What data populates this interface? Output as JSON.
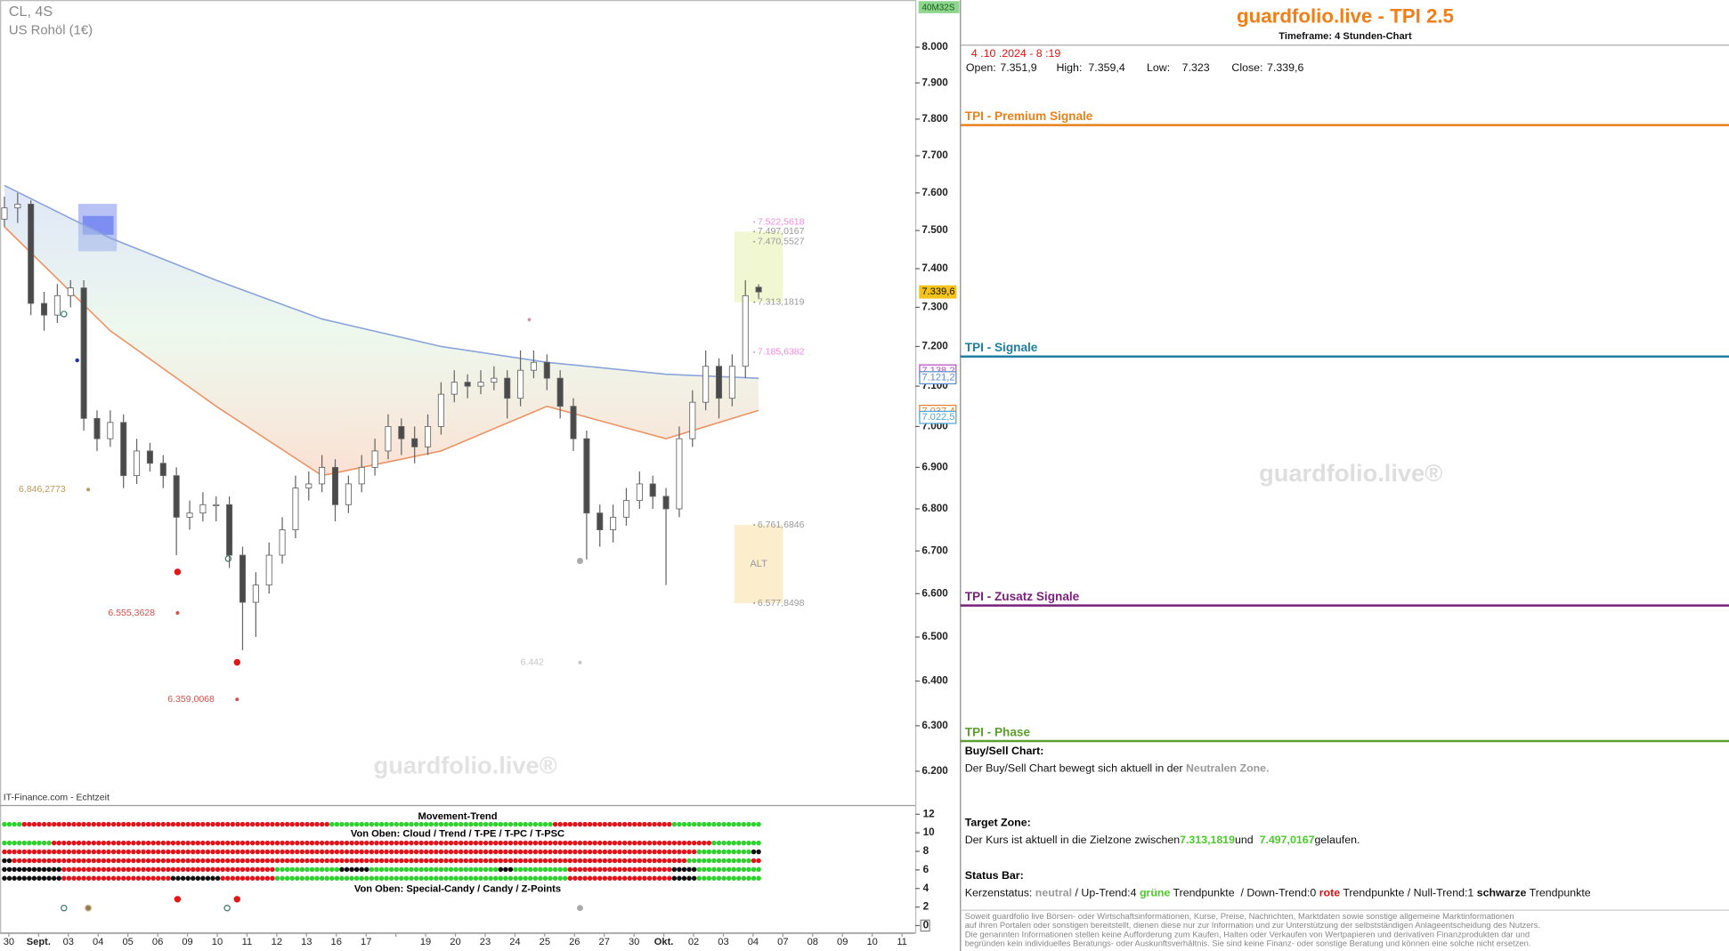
{
  "chart_data": {
    "type": "candlestick",
    "title": "CL, 4S",
    "subtitle": "US Rohöl (1€)",
    "source": "IT-Finance.com - Echtzeit",
    "watermark": "guardfolio.live®",
    "timer": "40M32S",
    "zone_label": "ALT",
    "log_scale": true,
    "grid": false,
    "up_color": "#ffffff",
    "down_color": "#4a4a4a",
    "wick_color": "#666666",
    "ylim": [
      6.128,
      8.134
    ],
    "yticks": [
      {
        "value": 6.2,
        "label": "6.200"
      },
      {
        "value": 6.3,
        "label": "6.300"
      },
      {
        "value": 6.4,
        "label": "6.400"
      },
      {
        "value": 6.5,
        "label": "6.500"
      },
      {
        "value": 6.6,
        "label": "6.600"
      },
      {
        "value": 6.7,
        "label": "6.700"
      },
      {
        "value": 6.8,
        "label": "6.800"
      },
      {
        "value": 6.9,
        "label": "6.900"
      },
      {
        "value": 7.0,
        "label": "7.000"
      },
      {
        "value": 7.1,
        "label": "7.100"
      },
      {
        "value": 7.2,
        "label": "7.200"
      },
      {
        "value": 7.3,
        "label": "7.300"
      },
      {
        "value": 7.4,
        "label": "7.400"
      },
      {
        "value": 7.5,
        "label": "7.500"
      },
      {
        "value": 7.6,
        "label": "7.600"
      },
      {
        "value": 7.7,
        "label": "7.700"
      },
      {
        "value": 7.8,
        "label": "7.800"
      },
      {
        "value": 7.9,
        "label": "7.900"
      },
      {
        "value": 8.0,
        "label": "8.000"
      }
    ],
    "categories": [
      "30",
      "Sept.",
      "03",
      "04",
      "05",
      "06",
      "09",
      "10",
      "11",
      "12",
      "13",
      "16",
      "17",
      null,
      "19",
      "20",
      "23",
      "24",
      "25",
      "26",
      "27",
      "30",
      "Okt.",
      "02",
      "03",
      "04",
      "07",
      "08",
      "09",
      "10",
      "11"
    ],
    "candles": [
      [
        7.53,
        7.59,
        7.51,
        7.56
      ],
      [
        7.56,
        7.6,
        7.52,
        7.57
      ],
      [
        7.57,
        7.58,
        7.28,
        7.31
      ],
      [
        7.31,
        7.34,
        7.24,
        7.28
      ],
      [
        7.28,
        7.36,
        7.26,
        7.33
      ],
      [
        7.33,
        7.37,
        7.3,
        7.35
      ],
      [
        7.35,
        7.37,
        6.99,
        7.02
      ],
      [
        7.02,
        7.04,
        6.94,
        6.97
      ],
      [
        6.97,
        7.04,
        6.95,
        7.01
      ],
      [
        7.01,
        7.03,
        6.85,
        6.88
      ],
      [
        6.88,
        6.97,
        6.86,
        6.94
      ],
      [
        6.94,
        6.96,
        6.89,
        6.91
      ],
      [
        6.91,
        6.93,
        6.85,
        6.88
      ],
      [
        6.88,
        6.9,
        6.69,
        6.78
      ],
      [
        6.78,
        6.82,
        6.75,
        6.79
      ],
      [
        6.79,
        6.84,
        6.77,
        6.81
      ],
      [
        6.81,
        6.83,
        6.77,
        6.81
      ],
      [
        6.81,
        6.83,
        6.66,
        6.69
      ],
      [
        6.69,
        6.71,
        6.47,
        6.58
      ],
      [
        6.58,
        6.65,
        6.5,
        6.62
      ],
      [
        6.62,
        6.72,
        6.6,
        6.69
      ],
      [
        6.69,
        6.78,
        6.67,
        6.75
      ],
      [
        6.75,
        6.88,
        6.73,
        6.85
      ],
      [
        6.85,
        6.89,
        6.82,
        6.86
      ],
      [
        6.86,
        6.93,
        6.84,
        6.9
      ],
      [
        6.9,
        6.92,
        6.77,
        6.81
      ],
      [
        6.81,
        6.88,
        6.79,
        6.86
      ],
      [
        6.86,
        6.93,
        6.84,
        6.9
      ],
      [
        6.9,
        6.97,
        6.88,
        6.94
      ],
      [
        6.94,
        7.03,
        6.92,
        7.0
      ],
      [
        7.0,
        7.02,
        6.93,
        6.97
      ],
      [
        6.97,
        7.0,
        6.91,
        6.95
      ],
      [
        6.95,
        7.03,
        6.93,
        7.0
      ],
      [
        7.0,
        7.11,
        6.98,
        7.08
      ],
      [
        7.08,
        7.14,
        7.06,
        7.11
      ],
      [
        7.11,
        7.13,
        7.07,
        7.1
      ],
      [
        7.1,
        7.14,
        7.08,
        7.11
      ],
      [
        7.11,
        7.15,
        7.09,
        7.12
      ],
      [
        7.12,
        7.14,
        7.02,
        7.07
      ],
      [
        7.07,
        7.19,
        7.05,
        7.14
      ],
      [
        7.14,
        7.19,
        7.12,
        7.16
      ],
      [
        7.16,
        7.18,
        7.09,
        7.12
      ],
      [
        7.12,
        7.14,
        7.02,
        7.05
      ],
      [
        7.05,
        7.07,
        6.94,
        6.97
      ],
      [
        6.97,
        6.99,
        6.68,
        6.79
      ],
      [
        6.79,
        6.81,
        6.71,
        6.75
      ],
      [
        6.75,
        6.81,
        6.72,
        6.78
      ],
      [
        6.78,
        6.85,
        6.76,
        6.82
      ],
      [
        6.82,
        6.89,
        6.8,
        6.86
      ],
      [
        6.86,
        6.88,
        6.8,
        6.83
      ],
      [
        6.83,
        6.85,
        6.62,
        6.8
      ],
      [
        6.8,
        7.0,
        6.78,
        6.97
      ],
      [
        6.97,
        7.09,
        6.95,
        7.06
      ],
      [
        7.06,
        7.19,
        7.04,
        7.15
      ],
      [
        7.15,
        7.17,
        7.02,
        7.07
      ],
      [
        7.07,
        7.18,
        7.05,
        7.15
      ],
      [
        7.15,
        7.37,
        7.12,
        7.33
      ],
      [
        7.3519,
        7.3594,
        7.323,
        7.3396
      ]
    ],
    "band_x": [
      0,
      8,
      16,
      24,
      33,
      41,
      50,
      57
    ],
    "bands": [
      {
        "color": "#8aa4dc",
        "values": [
          7.62,
          7.48,
          7.37,
          7.27,
          7.2,
          7.16,
          7.13,
          7.12
        ]
      },
      {
        "color": "#ec9466",
        "values": [
          7.51,
          7.24,
          7.05,
          6.88,
          6.94,
          7.05,
          6.97,
          7.04
        ]
      }
    ],
    "annotations": [
      {
        "value": 6.8462773,
        "label": "6.846,2773",
        "color": "#b8985c"
      },
      {
        "value": 6.5553628,
        "label": "6.555,3628",
        "color": "#d4504a"
      },
      {
        "value": 6.3590068,
        "label": "6.359,0068",
        "color": "#d4504a"
      },
      {
        "value": 6.442,
        "label": "6.442",
        "color": "#c4c4c4"
      },
      {
        "value": 7.5225618,
        "label": "7.522,5618",
        "color": "#ee8ede"
      },
      {
        "value": 7.4970167,
        "label": "7.497,0167",
        "color": "#999999"
      },
      {
        "value": 7.4705527,
        "label": "7.470,5527",
        "color": "#999999"
      },
      {
        "value": 7.3131819,
        "label": "7.313,1819",
        "color": "#999999"
      },
      {
        "value": 7.1856382,
        "label": "7.185,6382",
        "color": "#ee8ede"
      },
      {
        "value": 6.7616846,
        "label": "6.761,6846",
        "color": "#999999"
      },
      {
        "value": 6.5778498,
        "label": "6.577,8498",
        "color": "#999999"
      }
    ],
    "price_tags": [
      {
        "value": 7.3396,
        "label": "7.339,6",
        "color": "#f3c21b"
      },
      {
        "value": 7.1382,
        "label": "7.138,2",
        "color": "#b44fbf"
      },
      {
        "value": 7.1212,
        "label": "7.121,2",
        "color": "#5b8bd0"
      },
      {
        "value": 7.0374,
        "label": "7.037,4",
        "color": "#e08030"
      },
      {
        "value": 7.0225,
        "label": "7.022,5",
        "color": "#4aa8d8"
      }
    ]
  },
  "indicator": {
    "title": "Movement-Trend",
    "subtitle": "Von Oben: Cloud / Trend / T-PE / T-PC / T-PSC",
    "footer": "Von Oben: Special-Candy / Candy / Z-Points",
    "ylim": [
      -0.6,
      12.7
    ],
    "yticks": [
      0,
      2,
      4,
      6,
      8,
      10,
      12
    ],
    "palette": {
      "G": "#2fd12f",
      "R": "#e3131b",
      "K": "#111111"
    },
    "trend_row": "GGRRRRRRRRRRRRRRRRRRRRRRRGGGGGGGGGGGGGGGGGRRRRRRRRRGGGGGGG",
    "rows": [
      "GGGGRRRRRRRRRRRRRRRRRRRRRRRRRRRRRRRRRRRRRRRRRRRRRRRRRRGGGGG",
      "RRRRRRRRRRRRRRRRRRRRRRRRRRRRRRRRRRRRRRRRRRRRRRRRRRRRRGGGGK",
      "KRRRRRRRRRRRRRRRRRRRRRRRRRRRRRRRRRRRRRRRRRRRRRRRRRRRGGGGGR",
      "KKKKKRRRRRRRRRRRRRRRRGGGGGKKGGGGGGGGGGKGGGGRRRRRRRRKKGGGGG",
      "KKKKKRRRRRRRRKKKKRRRRGGGGGGGGGGGGGGGGGGGGGGRRRRRRRRKKGGGGG"
    ]
  },
  "panel": {
    "title": "guardfolio.live - TPI 2.5",
    "timeframe": "Timeframe: 4 Stunden-Chart",
    "datetime": " 4 .10 .2024 - 8 :19",
    "ohlc": [
      "Open:",
      "7.351,9",
      "High:",
      "7.359,4",
      "Low:",
      "7.323",
      "Close:",
      "7.339,6"
    ],
    "sections": [
      {
        "name": "TPI - Premium Signale",
        "color": "#e8821a"
      },
      {
        "name": "TPI - Signale",
        "color": "#1f7fa0"
      },
      {
        "name": "TPI - Zusatz Signale",
        "color": "#7a1f7a"
      },
      {
        "name": "TPI - Phase",
        "color": "#5aa02c"
      }
    ],
    "watermark": "guardfolio.live®",
    "buy_sell": {
      "heading": "Buy/Sell Chart:",
      "parts": [
        {
          "text": "Der Buy/Sell Chart bewegt sich aktuell in der ",
          "style": "plain"
        },
        {
          "text": "Neutralen Zone.",
          "style": "neutral"
        }
      ]
    },
    "target_zone": {
      "heading": "Target Zone:",
      "parts": [
        {
          "text": "Der Kurs ist aktuell in die Zielzone zwischen",
          "style": "plain"
        },
        {
          "text": "7.313,1819",
          "style": "green"
        },
        {
          "text": "und ",
          "style": "plain"
        },
        {
          "text": " 7.497,0167",
          "style": "green"
        },
        {
          "text": "gelaufen.",
          "style": "plain"
        }
      ]
    },
    "status_bar": {
      "heading": "Status Bar:",
      "parts": [
        {
          "text": "Kerzenstatus: ",
          "style": "plain"
        },
        {
          "text": "neutral",
          "style": "neutral"
        },
        {
          "text": " / Up-Trend:4 ",
          "style": "plain"
        },
        {
          "text": "grüne",
          "style": "green"
        },
        {
          "text": " Trendpunkte  / Down-Trend:0 ",
          "style": "plain"
        },
        {
          "text": "rote",
          "style": "red"
        },
        {
          "text": " Trendpunkte / Null-Trend:1 ",
          "style": "plain"
        },
        {
          "text": "schwarze",
          "style": "bold"
        },
        {
          "text": " Trendpunkte",
          "style": "plain"
        }
      ]
    },
    "disclaimer": [
      "Soweit guardfolio live Börsen- oder Wirtschaftsinformationen, Kurse, Preise, Nachrichten, Marktdaten sowie sonstige allgemeine Marktinformationen",
      "auf ihren Portalen oder sonstigen bereitstellt, dienen diese nur zur Information und zur Unterstützung der selbstständigen Anlageentscheidung des Nutzers.",
      "Die genannten Informationen stellen keine Aufforderung zum Kaufen, Halten oder Verkaufen von Wertpapieren und derivativen Finanzprodukten dar und",
      "begründen kein individuelles Beratungs- oder Auskunftsverhältnis. Sie sind keine Finanz- oder sonstige Beratung und können eine solche nicht ersetzen."
    ]
  }
}
